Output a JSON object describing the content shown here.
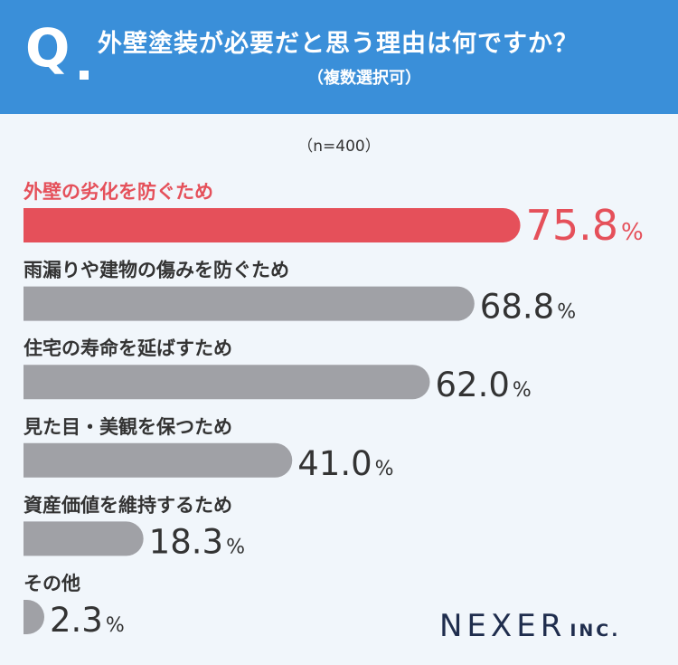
{
  "header": {
    "q_letter": "Q",
    "title": "外壁塗装が必要だと思う理由は何ですか？",
    "subtitle": "（複数選択可）"
  },
  "sample_label": "（n=400）",
  "logo": {
    "main": "NEXER",
    "inc": "INC."
  },
  "colors": {
    "highlight": "#e5505a",
    "bar": "#a0a1a6",
    "header": "#3a8fd9",
    "background": "#f1f6fb"
  },
  "chart_data": {
    "type": "bar",
    "orientation": "horizontal",
    "categories": [
      "外壁の劣化を防ぐため",
      "雨漏りや建物の傷みを防ぐため",
      "住宅の寿命を延ばすため",
      "見た目・美観を保つため",
      "資産価値を維持するため",
      "その他"
    ],
    "values": [
      75.8,
      68.8,
      62.0,
      41.0,
      18.3,
      2.3
    ],
    "value_labels": [
      "75.8",
      "68.8",
      "62.0",
      "41.0",
      "18.3",
      "2.3"
    ],
    "unit": "%",
    "highlight_index": 0
  }
}
